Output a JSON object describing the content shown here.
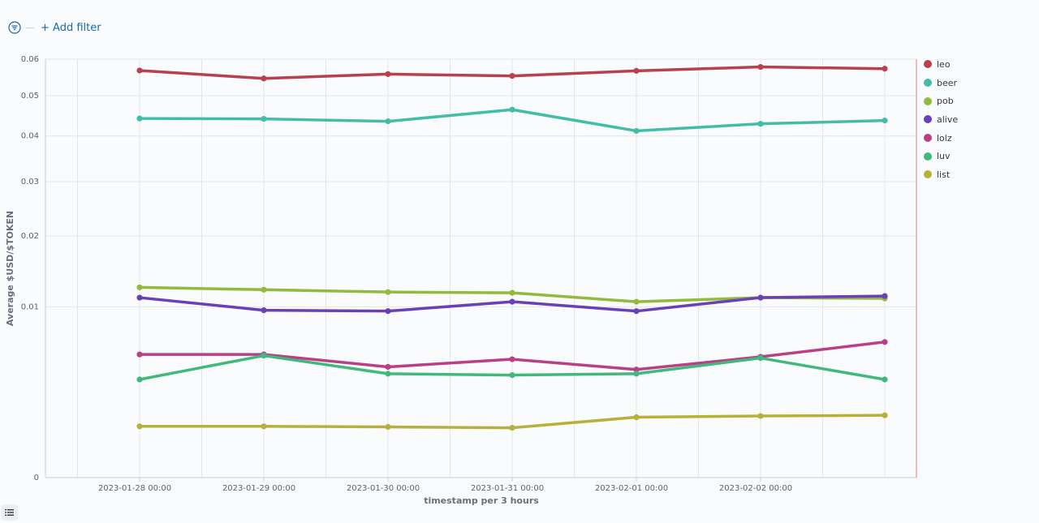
{
  "toolbar": {
    "filter_icon": "filter-icon",
    "add_filter_label": "+ Add filter"
  },
  "chart_data": {
    "type": "line",
    "x_label": "timestamp per 3 hours",
    "y_label": "Average $USD/$TOKEN",
    "y_scale": "sqrt",
    "y_ticks": [
      0,
      0.01,
      0.02,
      0.03,
      0.04,
      0.05,
      0.06
    ],
    "y_tick_labels": [
      "0",
      "0.01",
      "0.02",
      "0.03",
      "0.04",
      "0.05",
      "0.06"
    ],
    "ylim": [
      0,
      0.06
    ],
    "x_tick_labels": [
      "2023-01-28 00:00",
      "2023-01-29 00:00",
      "2023-01-30 00:00",
      "2023-01-31 00:00",
      "2023-02-01 00:00",
      "2023-02-02 00:00"
    ],
    "x_days": [
      0,
      1,
      2,
      3,
      4,
      5,
      6
    ],
    "grid": true,
    "legend_position": "right",
    "series": [
      {
        "name": "leo",
        "color": "#b8404f",
        "values": [
          0.0568,
          0.0546,
          0.0558,
          0.0553,
          0.0567,
          0.0578,
          0.0573
        ]
      },
      {
        "name": "beer",
        "color": "#44bda8",
        "values": [
          0.0442,
          0.0441,
          0.0435,
          0.0464,
          0.0412,
          0.0429,
          0.0437
        ]
      },
      {
        "name": "pob",
        "color": "#93ba3c",
        "values": [
          0.0124,
          0.0121,
          0.0118,
          0.0117,
          0.0106,
          0.0111,
          0.011
        ]
      },
      {
        "name": "alive",
        "color": "#6a40b9",
        "values": [
          0.0111,
          0.0096,
          0.0095,
          0.0106,
          0.0095,
          0.0111,
          0.0113
        ]
      },
      {
        "name": "lolz",
        "color": "#b94087",
        "values": [
          0.0052,
          0.0052,
          0.0042,
          0.0048,
          0.004,
          0.005,
          0.0063
        ]
      },
      {
        "name": "luv",
        "color": "#40b97c",
        "values": [
          0.0033,
          0.0051,
          0.0037,
          0.0036,
          0.0037,
          0.0049,
          0.0033
        ]
      },
      {
        "name": "list",
        "color": "#b9b03a",
        "values": [
          0.0009,
          0.0009,
          0.00088,
          0.00085,
          0.00125,
          0.0013,
          0.00133
        ]
      }
    ]
  }
}
